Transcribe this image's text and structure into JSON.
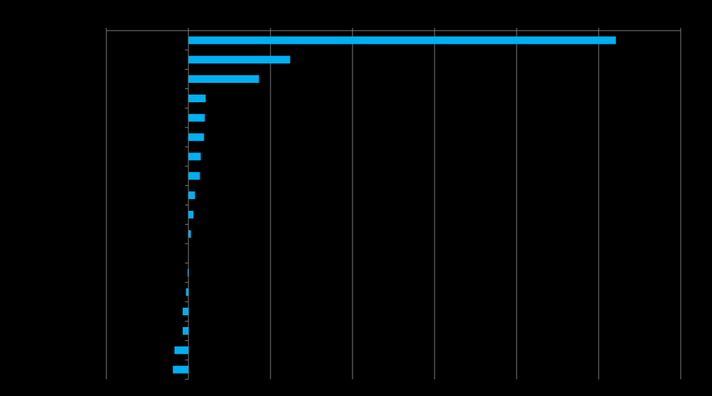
{
  "chart_data": {
    "type": "barh",
    "categories": [
      null,
      null,
      null,
      null,
      null,
      null,
      null,
      null,
      null,
      null,
      null,
      null,
      null,
      null,
      null,
      null,
      null,
      null
    ],
    "values": [
      5.21,
      1.24,
      0.86,
      0.21,
      0.2,
      0.19,
      0.15,
      0.14,
      0.08,
      0.06,
      0.03,
      0,
      -0.01,
      -0.03,
      -0.07,
      -0.07,
      -0.17,
      -0.19
    ],
    "color": "#00b0f0",
    "xlim": [
      -1,
      6
    ],
    "xticks": [
      -1,
      0,
      1,
      2,
      3,
      4,
      5,
      6
    ],
    "grid": true
  }
}
